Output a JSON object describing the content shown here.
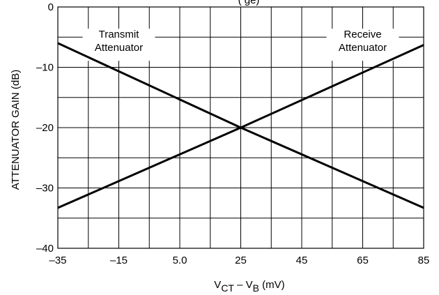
{
  "chart_data": {
    "type": "line",
    "xlabel": {
      "main": "V",
      "sub1": "CT",
      "mid": " – V",
      "sub2": "B",
      "end": " (mV)"
    },
    "ylabel": "ATTENUATOR GAIN (dB)",
    "xlim": [
      -35,
      85
    ],
    "ylim": [
      -40,
      0
    ],
    "x_ticks": [
      -35,
      -25,
      -15,
      -5,
      5,
      15,
      25,
      35,
      45,
      55,
      65,
      75,
      85
    ],
    "x_tick_labels": [
      "–35",
      "–15",
      "5.0",
      "25",
      "45",
      "65",
      "85"
    ],
    "x_tick_label_values": [
      -35,
      -15,
      5,
      25,
      45,
      65,
      85
    ],
    "y_ticks": [
      0,
      -5,
      -10,
      -15,
      -20,
      -25,
      -30,
      -35,
      -40
    ],
    "y_tick_labels": [
      "0",
      "–10",
      "–20",
      "–30",
      "–40"
    ],
    "y_tick_label_values": [
      0,
      -10,
      -20,
      -30,
      -40
    ],
    "grid": true,
    "series": [
      {
        "name": "Transmit Attenuator",
        "x": [
          -35,
          25,
          85
        ],
        "y": [
          -6,
          -20,
          -33.3
        ]
      },
      {
        "name": "Receive Attenuator",
        "x": [
          -35,
          25,
          85
        ],
        "y": [
          -33.3,
          -20,
          -6.3
        ]
      }
    ],
    "annotations": [
      {
        "lines": [
          "Transmit",
          "Attenuator"
        ],
        "x": -15,
        "y": -5.1
      },
      {
        "lines": [
          "Receive",
          "Attenuator"
        ],
        "x": 65,
        "y": -5.1
      }
    ],
    "clipped_title": "(                                  ge)"
  },
  "colors": {
    "line": "#000000",
    "grid": "#000000",
    "background": "#ffffff"
  }
}
